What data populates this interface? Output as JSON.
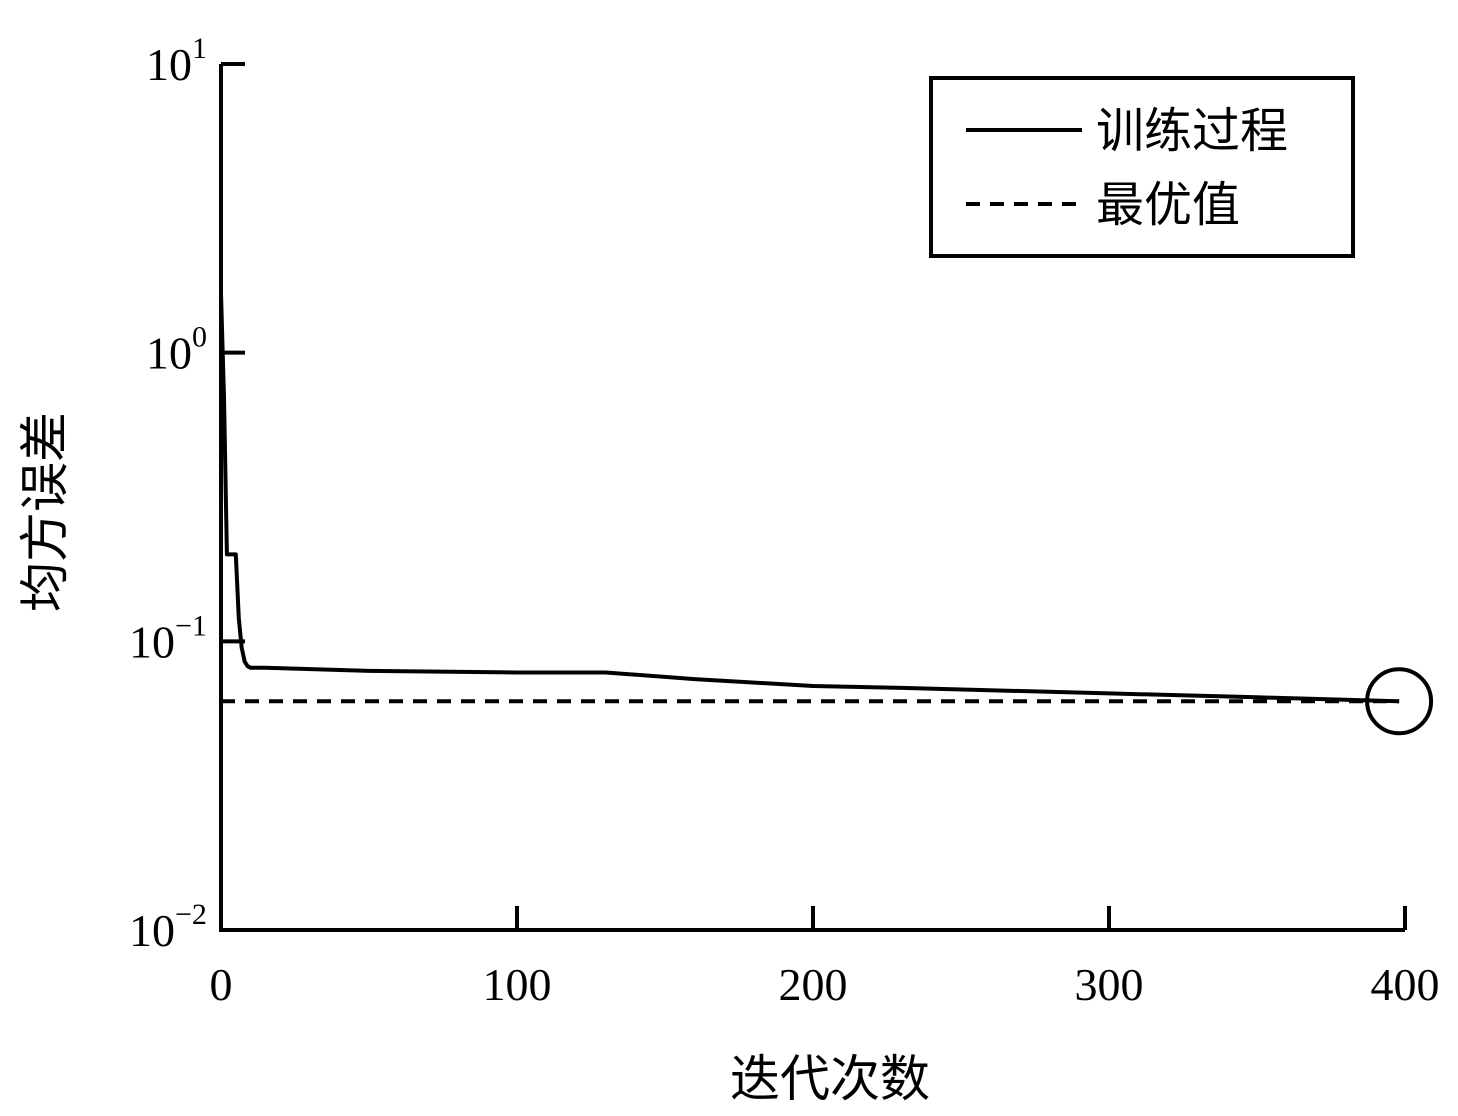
{
  "chart_data": {
    "type": "line",
    "xlabel": "迭代次数",
    "ylabel": "均方误差",
    "xlim": [
      0,
      400
    ],
    "ylim": [
      0.01,
      10
    ],
    "yscale": "log",
    "x_ticks": [
      0,
      100,
      200,
      300,
      400
    ],
    "y_ticks": [
      {
        "value": 0.01,
        "base": "10",
        "exp": "−2"
      },
      {
        "value": 0.1,
        "base": "10",
        "exp": "−1"
      },
      {
        "value": 1,
        "base": "10",
        "exp": "0"
      },
      {
        "value": 10,
        "base": "10",
        "exp": "1"
      }
    ],
    "series": [
      {
        "name": "训练过程",
        "style": "solid",
        "color": "#000000",
        "x": [
          0,
          1,
          2,
          3,
          5,
          6,
          7,
          8,
          9,
          10,
          12,
          15,
          50,
          100,
          130,
          160,
          200,
          230,
          300,
          350,
          398
        ],
        "y": [
          1.6,
          0.7,
          0.2,
          0.2,
          0.2,
          0.12,
          0.095,
          0.085,
          0.082,
          0.081,
          0.081,
          0.081,
          0.079,
          0.078,
          0.078,
          0.074,
          0.07,
          0.069,
          0.066,
          0.064,
          0.062
        ]
      },
      {
        "name": "最优值",
        "style": "dashed",
        "color": "#000000",
        "x": [
          0,
          398
        ],
        "y": [
          0.062,
          0.062
        ]
      }
    ],
    "marker": {
      "shape": "circle",
      "x": 398,
      "y": 0.062
    },
    "legend": {
      "position": "top-right",
      "border": true
    },
    "grid": false
  }
}
